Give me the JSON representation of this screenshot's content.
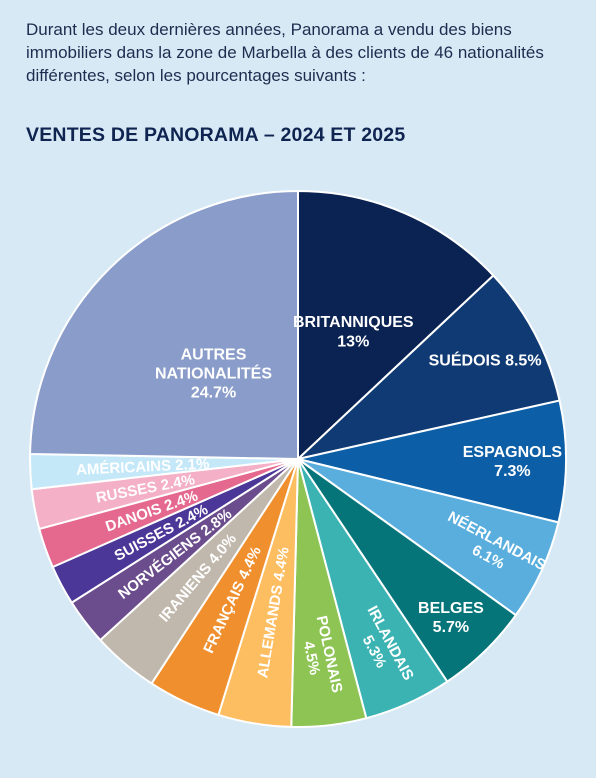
{
  "intro_text": "Durant les deux dernières années, Panorama a vendu des biens immobiliers dans la zone de Marbella à des clients de 46 nationalités différentes, selon les pourcentages suivants :",
  "chart_data": {
    "type": "pie",
    "title": "VENTES DE PANORAMA – 2024 ET 2025",
    "unit": "%",
    "slices": [
      {
        "name": "BRITANNIQUES",
        "label": "13%",
        "value": 13,
        "color": "#0b2352"
      },
      {
        "name": "SUÉDOIS",
        "label": "8.5%",
        "value": 8.5,
        "color": "#0f3a73"
      },
      {
        "name": "ESPAGNOLS",
        "label": "7.3%",
        "value": 7.3,
        "color": "#0c5ea6"
      },
      {
        "name": "NÉERLANDAIS",
        "label": "6.1%",
        "value": 6.1,
        "color": "#5aaede"
      },
      {
        "name": "BELGES",
        "label": "5.7%",
        "value": 5.7,
        "color": "#05757a"
      },
      {
        "name": "IRLANDAIS",
        "label": "5.3%",
        "value": 5.3,
        "color": "#3bb3b3"
      },
      {
        "name": "POLONAIS",
        "label": "4.5%",
        "value": 4.5,
        "color": "#8dc454"
      },
      {
        "name": "ALLEMANDS",
        "label": "4.4%",
        "value": 4.4,
        "color": "#fdbe62"
      },
      {
        "name": "FRANÇAIS",
        "label": "4.4%",
        "value": 4.4,
        "color": "#f08f2e"
      },
      {
        "name": "IRANIENS",
        "label": "4.0%",
        "value": 4.0,
        "color": "#c0b8ac"
      },
      {
        "name": "NORVÉGIENS",
        "label": "2.8%",
        "value": 2.8,
        "color": "#6b4c8c"
      },
      {
        "name": "SUISSES",
        "label": "2.4%",
        "value": 2.4,
        "color": "#4b3797"
      },
      {
        "name": "DANOIS",
        "label": "2.4%",
        "value": 2.4,
        "color": "#e5698e"
      },
      {
        "name": "RUSSES",
        "label": "2.4%",
        "value": 2.4,
        "color": "#f4b0c6"
      },
      {
        "name": "AMÉRICAINS",
        "label": "2.1%",
        "value": 2.1,
        "color": "#c5e8f9"
      },
      {
        "name": "AUTRES NATIONALITÉS",
        "label": "24.7%",
        "value": 24.7,
        "color": "#8a9cc9"
      }
    ]
  }
}
